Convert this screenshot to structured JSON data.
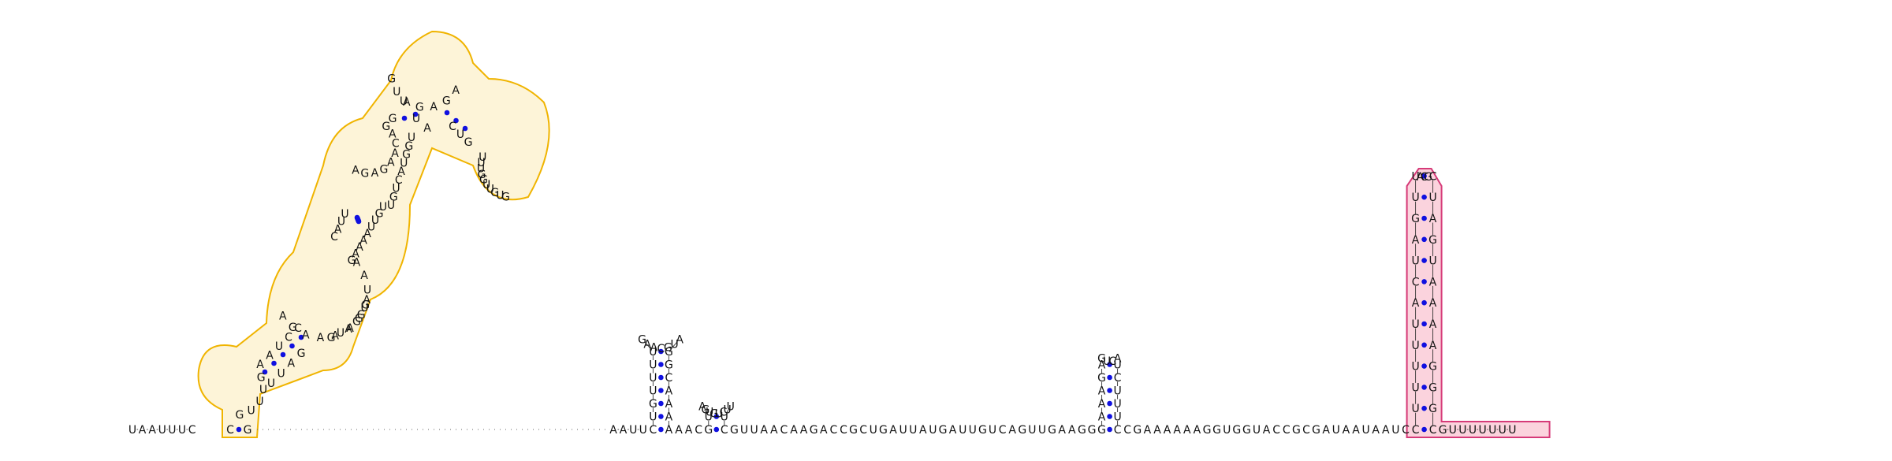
{
  "structure": {
    "five_prime_tail": "UAAUUUC",
    "gap_after_tail": true,
    "bulge_region": "AAUU",
    "hairpin1": {
      "stem5": "CUGUUUU",
      "loop": "GAACGUA",
      "stem3": "GGCAAAA"
    },
    "linker1": "AAC",
    "hairpin2": {
      "stem5": "GU",
      "loop": "AGUGUCUU",
      "stem3": "UC"
    },
    "linker2": "GUUAACAAGACCGCUGAUUAUGAUUGUCAGUUGAAGG",
    "hairpin3": {
      "stem5": "GAAAGA",
      "loop": "GUCA",
      "stem3": "UCUUUC"
    },
    "linker3": "CGAAAAAAGGUGGUACCGCGAUAAUAAUC",
    "hairpin4": {
      "stem5": "CUUUUUACUAGUU",
      "loop": "ACG",
      "stem3": "CUAGUAAAAGGGC"
    },
    "three_prime_tail": "GUUUUUUU",
    "domain_a": {
      "closing_stem5": "C",
      "interior_left": "GUUUG",
      "stem_b5": "AAUCC",
      "loop_b_left": "AGAAAAGGUAA",
      "stem_c5": "CAUUGUACA",
      "loop_c_left": "AGAGAACAG",
      "stem_d5": "GU",
      "apex": "GUAGAGA",
      "stem_e5": "GAC",
      "loop_e": "UUUGGUUGUG",
      "stem_e3": "GUC",
      "stem_d3": "AU",
      "loop_c_right": "UGGUACUGU",
      "stem_c3": "UGUUAAAAG",
      "loop_b_right": "AUGG",
      "stem_b3": "GAUU",
      "highlight": "GUA",
      "closing_stem3": "G"
    }
  },
  "colors": {
    "pair_dot": "#1010e0",
    "highlight_orange": "#f0b400",
    "highlight_pink": "#d63a78"
  }
}
